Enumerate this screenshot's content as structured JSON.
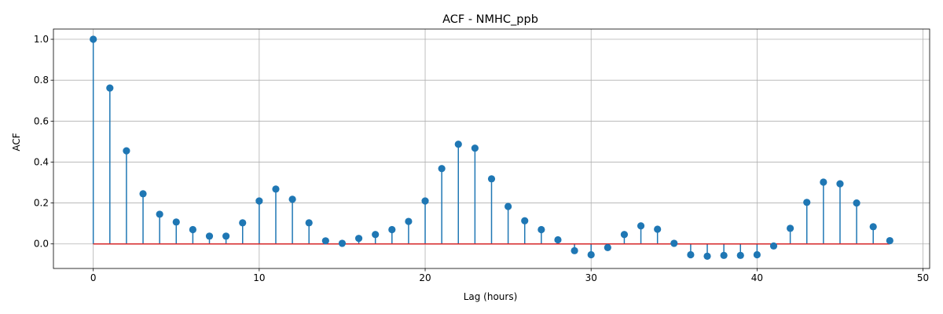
{
  "chart_data": {
    "type": "stem",
    "title": "ACF - NMHC_ppb",
    "xlabel": "Lag (hours)",
    "ylabel": "ACF",
    "xlim": [
      -2.4,
      50.4
    ],
    "ylim": [
      -0.12,
      1.05
    ],
    "xticks": [
      0,
      10,
      20,
      30,
      40,
      50
    ],
    "xtick_labels": [
      "0",
      "10",
      "20",
      "30",
      "40",
      "50"
    ],
    "yticks": [
      0.0,
      0.2,
      0.4,
      0.6,
      0.8,
      1.0
    ],
    "ytick_labels": [
      "0.0",
      "0.2",
      "0.4",
      "0.6",
      "0.8",
      "1.0"
    ],
    "grid": true,
    "baseline": 0,
    "colors": {
      "stem": "#1f77b4",
      "marker": "#1f77b4",
      "baseline": "#d62728",
      "grid": "#b0b0b0"
    },
    "x": [
      0,
      1,
      2,
      3,
      4,
      5,
      6,
      7,
      8,
      9,
      10,
      11,
      12,
      13,
      14,
      15,
      16,
      17,
      18,
      19,
      20,
      21,
      22,
      23,
      24,
      25,
      26,
      27,
      28,
      29,
      30,
      31,
      32,
      33,
      34,
      35,
      36,
      37,
      38,
      39,
      40,
      41,
      42,
      43,
      44,
      45,
      46,
      47,
      48
    ],
    "values": [
      1.0,
      0.762,
      0.455,
      0.245,
      0.145,
      0.107,
      0.07,
      0.038,
      0.038,
      0.103,
      0.21,
      0.268,
      0.218,
      0.103,
      0.015,
      0.003,
      0.027,
      0.046,
      0.07,
      0.11,
      0.21,
      0.368,
      0.487,
      0.468,
      0.318,
      0.183,
      0.113,
      0.07,
      0.02,
      -0.033,
      -0.053,
      -0.018,
      0.046,
      0.088,
      0.072,
      0.003,
      -0.053,
      -0.06,
      -0.056,
      -0.056,
      -0.053,
      -0.01,
      0.076,
      0.203,
      0.302,
      0.294,
      0.2,
      0.084,
      0.016
    ]
  }
}
